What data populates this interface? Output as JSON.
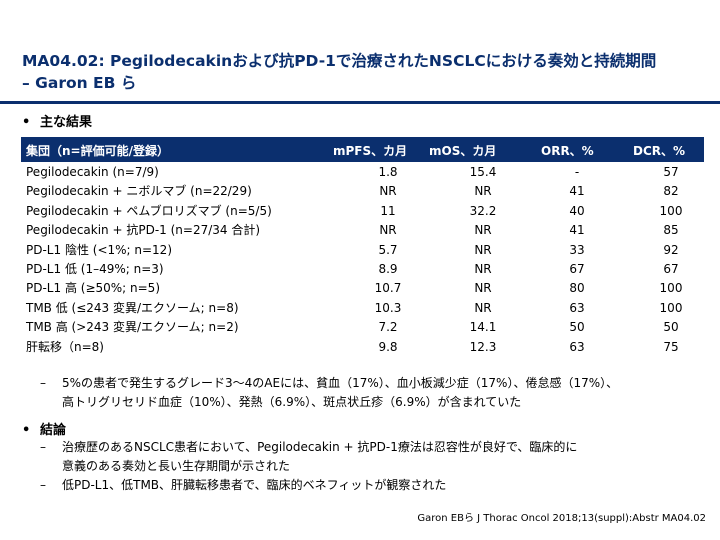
{
  "title_line1": "MA04.02: Pegilodecakinおよび抗PD-1で治療されたNSCLCにおける奏効と持続期間",
  "title_line2": "– Garon EB ら",
  "bullet_main": "主な結果",
  "bullet_symbol": "•",
  "table": {
    "headers": [
      "集団（n=評価可能/登録）",
      "mPFS、カ月",
      "mOS、カ月",
      "ORR、%",
      "DCR、%"
    ],
    "rows": [
      [
        "Pegilodecakin (n=7/9)",
        "1.8",
        "15.4",
        "-",
        "57"
      ],
      [
        "Pegilodecakin + ニボルマブ (n=22/29)",
        "NR",
        "NR",
        "41",
        "82"
      ],
      [
        "Pegilodecakin + ペムブロリズマブ (n=5/5)",
        "11",
        "32.2",
        "40",
        "100"
      ],
      [
        "Pegilodecakin + 抗PD-1 (n=27/34 合計)",
        "NR",
        "NR",
        "41",
        "85"
      ],
      [
        "PD-L1 陰性 (<1%; n=12)",
        "5.7",
        "NR",
        "33",
        "92"
      ],
      [
        "PD-L1 低 (1–49%; n=3)",
        "8.9",
        "NR",
        "67",
        "67"
      ],
      [
        "PD-L1 高 (≥50%; n=5)",
        "10.7",
        "NR",
        "80",
        "100"
      ],
      [
        "TMB 低 (≤243 変異/エクソーム; n=8)",
        "10.3",
        "NR",
        "63",
        "100"
      ],
      [
        "TMB 高 (>243 変異/エクソーム; n=2)",
        "7.2",
        "14.1",
        "50",
        "50"
      ],
      [
        "肝転移（n=8)",
        "9.8",
        "12.3",
        "63",
        "75"
      ]
    ]
  },
  "ae_note_line1": "5%の患者で発生するグレード3～4のAEには、貧血（17%）、血小板減少症（17%）、倦怠感（17%）、",
  "ae_note_line2": "高トリグリセリド血症（10%）、発熱（6.9%）、斑点状丘疹（6.9%）が含まれていた",
  "dash_symbol": "–",
  "conclusion_heading": "結論",
  "conclusion1_line1": "治療歴のあるNSCLC患者において、Pegilodecakin + 抗PD-1療法は忍容性が良好で、臨床的に",
  "conclusion1_line2": "意義のある奏効と長い生存期間が示された",
  "conclusion2": "低PD-L1、低TMB、肝臓転移患者で、臨床的ベネフィットが観察された",
  "citation": "Garon EBら J Thorac Oncol 2018;13(suppl):Abstr MA04.02",
  "colors": {
    "title": "#0b2f6e",
    "header_bg": "#0b2f6e",
    "header_text": "#ffffff"
  }
}
